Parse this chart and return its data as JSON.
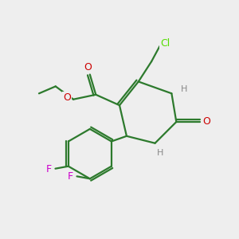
{
  "bg_color": "#eeeeee",
  "bond_color": "#2d7a2d",
  "N_color": "#0000ee",
  "O_color": "#cc0000",
  "F_color": "#cc00cc",
  "Cl_color": "#55dd00",
  "H_color": "#888888",
  "line_width": 1.6,
  "figsize": [
    3.0,
    3.0
  ],
  "dpi": 100,
  "xlim": [
    0,
    10
  ],
  "ylim": [
    0,
    10
  ]
}
